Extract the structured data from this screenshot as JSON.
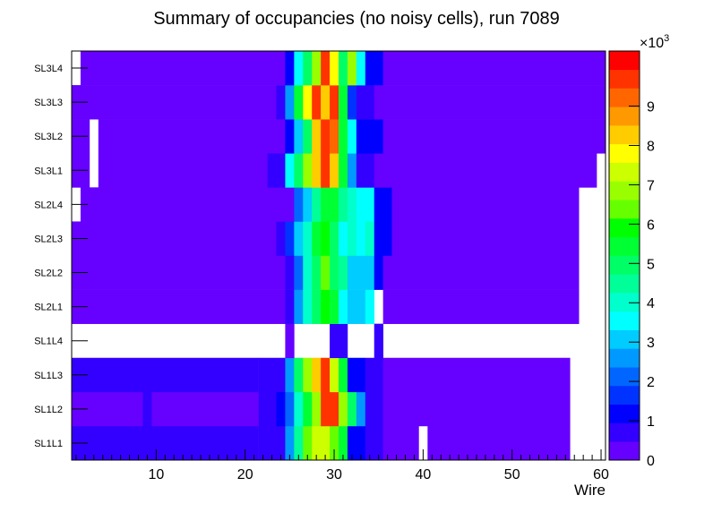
{
  "chart_data": {
    "type": "heatmap",
    "title": "Summary of occupancies (no noisy cells), run 7089",
    "xlabel": "Wire",
    "ylabel": "",
    "xlim": [
      0.5,
      60.5
    ],
    "x_ticks": [
      10,
      20,
      30,
      40,
      50,
      60
    ],
    "y_categories": [
      "SL1L1",
      "SL1L2",
      "SL1L3",
      "SL1L4",
      "SL2L1",
      "SL2L2",
      "SL2L3",
      "SL2L4",
      "SL3L1",
      "SL3L2",
      "SL3L3",
      "SL3L4"
    ],
    "colorbar": {
      "min": 0,
      "max": 10400,
      "exponent_label": "×10",
      "exponent_power": "3",
      "tick_values": [
        0,
        1000,
        2000,
        3000,
        4000,
        5000,
        6000,
        7000,
        8000,
        9000
      ],
      "tick_labels": [
        "0",
        "1",
        "2",
        "3",
        "4",
        "5",
        "6",
        "7",
        "8",
        "9"
      ],
      "colors": [
        "#6600ff",
        "#3300ff",
        "#0000ff",
        "#0033ff",
        "#0066ff",
        "#0099ff",
        "#00ccff",
        "#00ffff",
        "#00ffcc",
        "#00ff99",
        "#00ff66",
        "#00ff33",
        "#00ff00",
        "#66ff00",
        "#99ff00",
        "#ccff00",
        "#ffff00",
        "#ffcc00",
        "#ff9900",
        "#ff6600",
        "#ff3300",
        "#ff0000"
      ]
    },
    "rows": [
      {
        "layer": "SL1L1",
        "ranges": [
          [
            1,
            21,
            500
          ],
          [
            22,
            24,
            800
          ],
          [
            25,
            25,
            2500
          ],
          [
            26,
            26,
            4500
          ],
          [
            27,
            27,
            6500
          ],
          [
            28,
            29,
            7500
          ],
          [
            30,
            30,
            6500
          ],
          [
            31,
            31,
            5500
          ],
          [
            32,
            33,
            1200
          ],
          [
            34,
            35,
            700
          ],
          [
            36,
            39,
            400
          ],
          [
            41,
            56,
            400
          ]
        ]
      },
      {
        "layer": "SL1L2",
        "ranges": [
          [
            1,
            8,
            400
          ],
          [
            9,
            9,
            800
          ],
          [
            10,
            21,
            400
          ],
          [
            22,
            23,
            600
          ],
          [
            24,
            24,
            1000
          ],
          [
            25,
            25,
            2000
          ],
          [
            26,
            26,
            4000
          ],
          [
            27,
            27,
            5500
          ],
          [
            28,
            28,
            7000
          ],
          [
            29,
            30,
            9800
          ],
          [
            31,
            31,
            7000
          ],
          [
            32,
            32,
            5000
          ],
          [
            33,
            33,
            2500
          ],
          [
            34,
            35,
            700
          ],
          [
            36,
            56,
            400
          ]
        ]
      },
      {
        "layer": "SL1L3",
        "ranges": [
          [
            1,
            21,
            500
          ],
          [
            22,
            24,
            800
          ],
          [
            25,
            25,
            2500
          ],
          [
            26,
            26,
            5000
          ],
          [
            27,
            27,
            7000
          ],
          [
            28,
            28,
            8500
          ],
          [
            29,
            29,
            9800
          ],
          [
            30,
            30,
            7500
          ],
          [
            31,
            31,
            5500
          ],
          [
            32,
            33,
            1200
          ],
          [
            34,
            35,
            700
          ],
          [
            36,
            56,
            400
          ]
        ]
      },
      {
        "layer": "SL1L4",
        "ranges": [
          [
            25,
            25,
            300
          ],
          [
            30,
            31,
            500
          ],
          [
            35,
            35,
            500
          ]
        ]
      },
      {
        "layer": "SL2L1",
        "ranges": [
          [
            1,
            24,
            400
          ],
          [
            25,
            25,
            800
          ],
          [
            26,
            26,
            2500
          ],
          [
            27,
            27,
            3800
          ],
          [
            28,
            28,
            5000
          ],
          [
            29,
            29,
            5800
          ],
          [
            30,
            30,
            5400
          ],
          [
            31,
            31,
            3500
          ],
          [
            32,
            33,
            3000
          ],
          [
            34,
            34,
            3500
          ],
          [
            36,
            57,
            400
          ]
        ]
      },
      {
        "layer": "SL2L2",
        "ranges": [
          [
            1,
            24,
            400
          ],
          [
            25,
            25,
            800
          ],
          [
            26,
            26,
            2000
          ],
          [
            27,
            27,
            3800
          ],
          [
            28,
            28,
            5000
          ],
          [
            29,
            29,
            6200
          ],
          [
            30,
            30,
            5000
          ],
          [
            31,
            31,
            4400
          ],
          [
            32,
            34,
            3000
          ],
          [
            35,
            35,
            1200
          ],
          [
            36,
            57,
            400
          ]
        ]
      },
      {
        "layer": "SL2L3",
        "ranges": [
          [
            1,
            23,
            400
          ],
          [
            24,
            24,
            700
          ],
          [
            25,
            25,
            1500
          ],
          [
            26,
            26,
            3000
          ],
          [
            27,
            27,
            4200
          ],
          [
            28,
            28,
            5200
          ],
          [
            29,
            29,
            5800
          ],
          [
            30,
            30,
            4800
          ],
          [
            31,
            31,
            3500
          ],
          [
            32,
            32,
            4000
          ],
          [
            33,
            33,
            3500
          ],
          [
            34,
            34,
            4200
          ],
          [
            35,
            36,
            1000
          ],
          [
            37,
            57,
            400
          ]
        ]
      },
      {
        "layer": "SL2L4",
        "ranges": [
          [
            2,
            25,
            400
          ],
          [
            26,
            26,
            2000
          ],
          [
            27,
            27,
            3200
          ],
          [
            28,
            28,
            4500
          ],
          [
            29,
            30,
            5500
          ],
          [
            31,
            31,
            4500
          ],
          [
            32,
            32,
            3800
          ],
          [
            33,
            34,
            3500
          ],
          [
            35,
            36,
            1000
          ],
          [
            37,
            57,
            400
          ]
        ]
      },
      {
        "layer": "SL3L1",
        "ranges": [
          [
            1,
            2,
            400
          ],
          [
            4,
            22,
            400
          ],
          [
            23,
            24,
            700
          ],
          [
            25,
            25,
            3500
          ],
          [
            26,
            26,
            5000
          ],
          [
            27,
            27,
            7000
          ],
          [
            28,
            28,
            8500
          ],
          [
            29,
            29,
            9800
          ],
          [
            30,
            30,
            8200
          ],
          [
            31,
            31,
            5500
          ],
          [
            32,
            32,
            2500
          ],
          [
            33,
            34,
            800
          ],
          [
            35,
            59,
            400
          ]
        ]
      },
      {
        "layer": "SL3L2",
        "ranges": [
          [
            1,
            2,
            400
          ],
          [
            4,
            24,
            400
          ],
          [
            25,
            25,
            1000
          ],
          [
            26,
            26,
            3000
          ],
          [
            27,
            27,
            5000
          ],
          [
            28,
            28,
            8500
          ],
          [
            29,
            29,
            9800
          ],
          [
            30,
            30,
            9200
          ],
          [
            31,
            31,
            5500
          ],
          [
            32,
            32,
            3500
          ],
          [
            33,
            35,
            1000
          ],
          [
            36,
            60,
            400
          ]
        ]
      },
      {
        "layer": "SL3L3",
        "ranges": [
          [
            1,
            23,
            400
          ],
          [
            24,
            24,
            800
          ],
          [
            25,
            25,
            2500
          ],
          [
            26,
            26,
            5500
          ],
          [
            27,
            27,
            8000
          ],
          [
            28,
            28,
            9500
          ],
          [
            29,
            29,
            8200
          ],
          [
            30,
            30,
            9800
          ],
          [
            31,
            31,
            5200
          ],
          [
            32,
            32,
            1500
          ],
          [
            33,
            34,
            800
          ],
          [
            35,
            60,
            400
          ]
        ]
      },
      {
        "layer": "SL3L4",
        "ranges": [
          [
            2,
            24,
            400
          ],
          [
            25,
            25,
            1000
          ],
          [
            26,
            26,
            3500
          ],
          [
            27,
            27,
            5000
          ],
          [
            28,
            28,
            6800
          ],
          [
            29,
            29,
            9800
          ],
          [
            30,
            30,
            7800
          ],
          [
            31,
            31,
            5000
          ],
          [
            32,
            32,
            7000
          ],
          [
            33,
            33,
            3500
          ],
          [
            34,
            35,
            1000
          ],
          [
            36,
            60,
            400
          ]
        ]
      }
    ]
  }
}
